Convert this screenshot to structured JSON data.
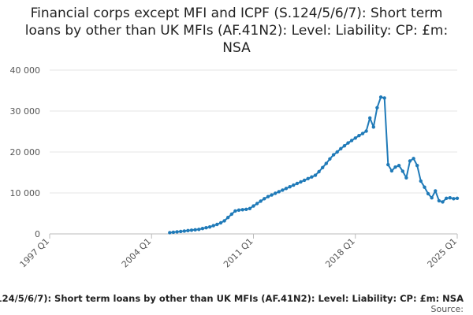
{
  "chart_data": {
    "type": "line",
    "title": "Financial corps except MFI and ICPF (S.124/5/6/7): Short term loans by other than UK MFIs (AF.41N2): Level: Liability: CP: £m: NSA",
    "xlabel": "",
    "ylabel": "",
    "ylim": [
      0,
      40000
    ],
    "y_ticks": [
      0,
      10000,
      20000,
      30000,
      40000
    ],
    "y_tick_labels": [
      "0",
      "10 000",
      "20 000",
      "30 000",
      "40 000"
    ],
    "x_ticks": [
      "1997 Q1",
      "2004 Q1",
      "2011 Q1",
      "2018 Q1",
      "2025 Q1"
    ],
    "x_range": [
      "1997 Q1",
      "2025 Q1"
    ],
    "grid": "horizontal",
    "legend_position": "bottom",
    "series": [
      {
        "name": "Financial corps except MFI and ICPF (S.124/5/6/7): Short term loans by other than UK MFIs (AF.41N2): Level: Liability: CP: £m: NSA",
        "color": "#1f7ab8",
        "x": [
          "2005 Q2",
          "2005 Q3",
          "2005 Q4",
          "2006 Q1",
          "2006 Q2",
          "2006 Q3",
          "2006 Q4",
          "2007 Q1",
          "2007 Q2",
          "2007 Q3",
          "2007 Q4",
          "2008 Q1",
          "2008 Q2",
          "2008 Q3",
          "2008 Q4",
          "2009 Q1",
          "2009 Q2",
          "2009 Q3",
          "2009 Q4",
          "2010 Q1",
          "2010 Q2",
          "2010 Q3",
          "2010 Q4",
          "2011 Q1",
          "2011 Q2",
          "2011 Q3",
          "2011 Q4",
          "2012 Q1",
          "2012 Q2",
          "2012 Q3",
          "2012 Q4",
          "2013 Q1",
          "2013 Q2",
          "2013 Q3",
          "2013 Q4",
          "2014 Q1",
          "2014 Q2",
          "2014 Q3",
          "2014 Q4",
          "2015 Q1",
          "2015 Q2",
          "2015 Q3",
          "2015 Q4",
          "2016 Q1",
          "2016 Q2",
          "2016 Q3",
          "2016 Q4",
          "2017 Q1",
          "2017 Q2",
          "2017 Q3",
          "2017 Q4",
          "2018 Q1",
          "2018 Q2",
          "2018 Q3",
          "2018 Q4",
          "2019 Q1",
          "2019 Q2",
          "2019 Q3",
          "2019 Q4",
          "2020 Q1",
          "2020 Q2",
          "2020 Q3",
          "2020 Q4",
          "2021 Q1",
          "2021 Q2",
          "2021 Q3",
          "2021 Q4",
          "2022 Q1",
          "2022 Q2",
          "2022 Q3",
          "2022 Q4",
          "2023 Q1",
          "2023 Q2",
          "2023 Q3",
          "2023 Q4",
          "2024 Q1",
          "2024 Q2",
          "2024 Q3",
          "2024 Q4",
          "2025 Q1"
        ],
        "values": [
          300,
          400,
          500,
          600,
          700,
          800,
          900,
          1000,
          1100,
          1300,
          1500,
          1700,
          2000,
          2300,
          2700,
          3200,
          4000,
          4800,
          5600,
          5800,
          5900,
          6000,
          6200,
          6800,
          7400,
          8000,
          8600,
          9100,
          9500,
          9900,
          10300,
          10700,
          11100,
          11500,
          11900,
          12300,
          12700,
          13100,
          13500,
          13900,
          14300,
          15200,
          16200,
          17200,
          18300,
          19300,
          20000,
          20800,
          21500,
          22200,
          22800,
          23400,
          24000,
          24500,
          25100,
          28300,
          26100,
          30800,
          33400,
          33200,
          16900,
          15400,
          16300,
          16700,
          15300,
          13700,
          17800,
          18400,
          16700,
          12900,
          11400,
          9800,
          8800,
          10500,
          8100,
          7800,
          8700,
          8800,
          8600,
          8700
        ]
      }
    ],
    "source_label": "Source:"
  }
}
